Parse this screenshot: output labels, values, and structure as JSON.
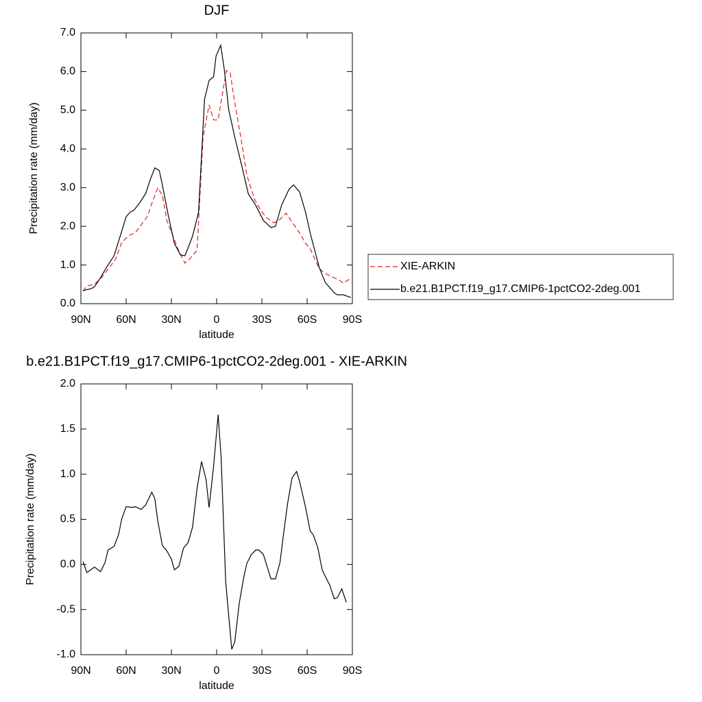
{
  "chart_data": [
    {
      "type": "line",
      "title": "DJF",
      "x_label": "latitude",
      "y_label": "Precipitation rate (mm/day)",
      "xlim": [
        90,
        -90
      ],
      "xticks": [
        {
          "value": 90,
          "label": "90N"
        },
        {
          "value": 60,
          "label": "60N"
        },
        {
          "value": 30,
          "label": "30N"
        },
        0,
        {
          "value": -30,
          "label": "30S"
        },
        {
          "value": -60,
          "label": "60S"
        },
        {
          "value": -90,
          "label": "90S"
        }
      ],
      "ylim": [
        0,
        7
      ],
      "yticks": [
        {
          "value": 0,
          "label": "0.0"
        },
        {
          "value": 1,
          "label": "1.0"
        },
        {
          "value": 2,
          "label": "2.0"
        },
        {
          "value": 3,
          "label": "3.0"
        },
        {
          "value": 4,
          "label": "4.0"
        },
        {
          "value": 5,
          "label": "5.0"
        },
        {
          "value": 6,
          "label": "6.0"
        },
        {
          "value": 7,
          "label": "7.0"
        }
      ],
      "legend": "right",
      "series": [
        {
          "name": "XIE-ARKIN",
          "color": "#e41a1c",
          "style": "dashed",
          "x": [
            88.6,
            86,
            81,
            76,
            72,
            67,
            63,
            58,
            54,
            50,
            46,
            43,
            39,
            36,
            33,
            28,
            25,
            21,
            18,
            13,
            9,
            5,
            2,
            -1,
            -4,
            -6.5,
            -9,
            -12,
            -16,
            -20,
            -25,
            -29,
            -33,
            -38,
            -42,
            -46,
            -50,
            -55,
            -59,
            -62,
            -68,
            -72,
            -78,
            -81,
            -84,
            -89
          ],
          "values": [
            0.32,
            0.46,
            0.5,
            0.69,
            0.89,
            1.15,
            1.58,
            1.77,
            1.83,
            2.04,
            2.25,
            2.59,
            3.0,
            2.8,
            2.15,
            1.65,
            1.35,
            1.05,
            1.15,
            1.38,
            4.31,
            5.14,
            4.75,
            4.75,
            5.46,
            6.03,
            5.97,
            5.2,
            4.31,
            3.33,
            2.71,
            2.43,
            2.22,
            2.09,
            2.18,
            2.34,
            2.11,
            1.83,
            1.56,
            1.42,
            0.91,
            0.78,
            0.67,
            0.62,
            0.53,
            0.66
          ]
        },
        {
          "name": "b.e21.B1PCT.f19_g17.CMIP6-1pctCO2-2deg.001",
          "color": "#000000",
          "style": "solid",
          "x": [
            88.6,
            83,
            81,
            77,
            73,
            68,
            64,
            60,
            57,
            55,
            51,
            47,
            44,
            41,
            38,
            36,
            32,
            28,
            24,
            21,
            19,
            16,
            12,
            8,
            5,
            2,
            0.4,
            -2.7,
            -5,
            -8,
            -12,
            -17,
            -21,
            -26,
            -31,
            -36,
            -39,
            -43,
            -48,
            -51,
            -55,
            -59,
            -62,
            -68,
            -72,
            -78,
            -80,
            -84,
            -89
          ],
          "values": [
            0.34,
            0.39,
            0.44,
            0.67,
            0.94,
            1.24,
            1.74,
            2.25,
            2.38,
            2.41,
            2.61,
            2.85,
            3.21,
            3.51,
            3.44,
            3.07,
            2.27,
            1.56,
            1.26,
            1.24,
            1.44,
            1.74,
            2.36,
            5.29,
            5.77,
            5.87,
            6.4,
            6.68,
            6.08,
            5.02,
            4.31,
            3.51,
            2.84,
            2.54,
            2.15,
            1.97,
            2.0,
            2.54,
            2.96,
            3.07,
            2.89,
            2.36,
            1.83,
            0.94,
            0.55,
            0.28,
            0.23,
            0.23,
            0.16
          ]
        }
      ]
    },
    {
      "type": "line",
      "title": "b.e21.B1PCT.f19_g17.CMIP6-1pctCO2-2deg.001 - XIE-ARKIN",
      "x_label": "latitude",
      "y_label": "Precipitation rate (mm/day)",
      "xlim": [
        90,
        -90
      ],
      "xticks": [
        {
          "value": 90,
          "label": "90N"
        },
        {
          "value": 60,
          "label": "60N"
        },
        {
          "value": 30,
          "label": "30N"
        },
        0,
        {
          "value": -30,
          "label": "30S"
        },
        {
          "value": -60,
          "label": "60S"
        },
        {
          "value": -90,
          "label": "90S"
        }
      ],
      "ylim": [
        -1,
        2
      ],
      "yticks": [
        {
          "value": -1,
          "label": "-1.0"
        },
        -0.5,
        {
          "value": 0,
          "label": "0.0"
        },
        0.5,
        {
          "value": 1,
          "label": "1.0"
        },
        1.5,
        {
          "value": 2,
          "label": "2.0"
        }
      ],
      "series": [
        {
          "color": "#000000",
          "style": "solid",
          "x": [
            88.6,
            86,
            81,
            77,
            74,
            72,
            68,
            65,
            63,
            60,
            56,
            54,
            50,
            47,
            43,
            41,
            39,
            36,
            33,
            30,
            28,
            25,
            22,
            19,
            16,
            13,
            10,
            7,
            5,
            2,
            -1,
            -3,
            -6,
            -10,
            -12,
            -15,
            -18,
            -20,
            -23,
            -26,
            -28,
            -31,
            -36,
            -39,
            -42,
            -44,
            -47,
            -50,
            -53,
            -55,
            -59,
            -62,
            -64,
            -67,
            -70,
            -72,
            -75,
            -78,
            -80,
            -83,
            -86
          ],
          "values": [
            0.03,
            -0.09,
            -0.03,
            -0.08,
            0.02,
            0.16,
            0.2,
            0.33,
            0.5,
            0.64,
            0.63,
            0.64,
            0.61,
            0.66,
            0.8,
            0.73,
            0.48,
            0.21,
            0.15,
            0.06,
            -0.06,
            -0.02,
            0.18,
            0.24,
            0.41,
            0.84,
            1.14,
            0.94,
            0.63,
            1.09,
            1.66,
            1.18,
            -0.19,
            -0.94,
            -0.86,
            -0.43,
            -0.14,
            0.01,
            0.11,
            0.16,
            0.16,
            0.11,
            -0.16,
            -0.16,
            0.02,
            0.29,
            0.67,
            0.96,
            1.03,
            0.92,
            0.63,
            0.37,
            0.33,
            0.19,
            -0.06,
            -0.13,
            -0.23,
            -0.38,
            -0.37,
            -0.27,
            -0.42
          ]
        }
      ]
    }
  ]
}
